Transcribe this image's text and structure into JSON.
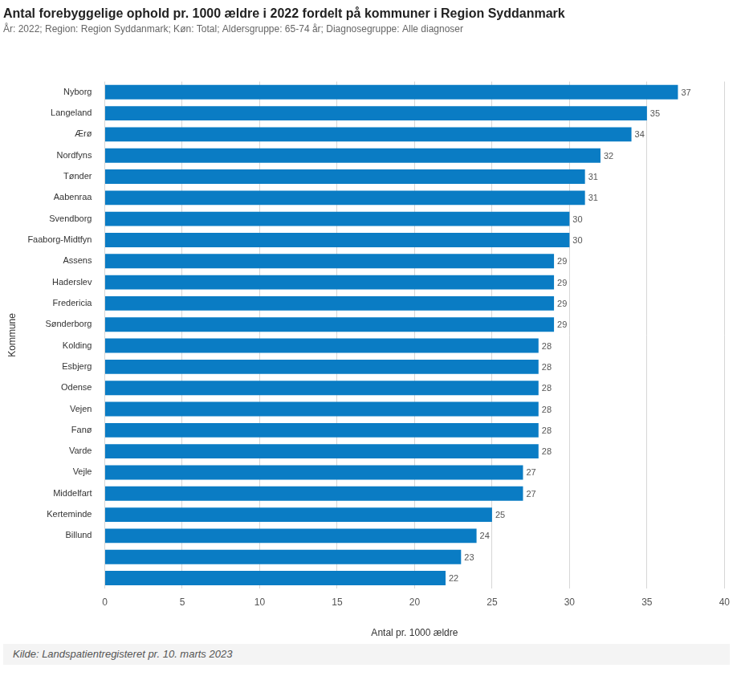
{
  "chart_data": {
    "type": "bar",
    "orientation": "horizontal",
    "title": "Antal forebyggelige ophold pr. 1000 ældre i 2022 fordelt på kommuner i Region Syddanmark",
    "subtitle": "År: 2022; Region: Region Syddanmark; Køn: Total; Aldersgruppe: 65-74 år; Diagnosegruppe: Alle diagnoser",
    "source": "Kilde: Landspatientregisteret pr. 10. marts 2023",
    "x_label": "Antal pr. 1000 ældre",
    "y_label": "Kommune",
    "categories": [
      "Nyborg",
      "Langeland",
      "Ærø",
      "Nordfyns",
      "Tønder",
      "Aabenraa",
      "Svendborg",
      "Faaborg-Midtfyn",
      "Assens",
      "Haderslev",
      "Fredericia",
      "Sønderborg",
      "Kolding",
      "Esbjerg",
      "Odense",
      "Vejen",
      "Fanø",
      "Varde",
      "Vejle",
      "Middelfart",
      "Kerteminde",
      "Billund",
      null,
      null
    ],
    "values": [
      37,
      35,
      34,
      32,
      31,
      31,
      30,
      30,
      29,
      29,
      29,
      29,
      28,
      28,
      28,
      28,
      28,
      28,
      27,
      27,
      25,
      24,
      23,
      22
    ],
    "color": "#0a7cc4",
    "xlim": [
      0,
      40
    ],
    "xticks": [
      0,
      5,
      10,
      15,
      20,
      25,
      30,
      35,
      40
    ],
    "grid": true,
    "data_labels": true
  }
}
